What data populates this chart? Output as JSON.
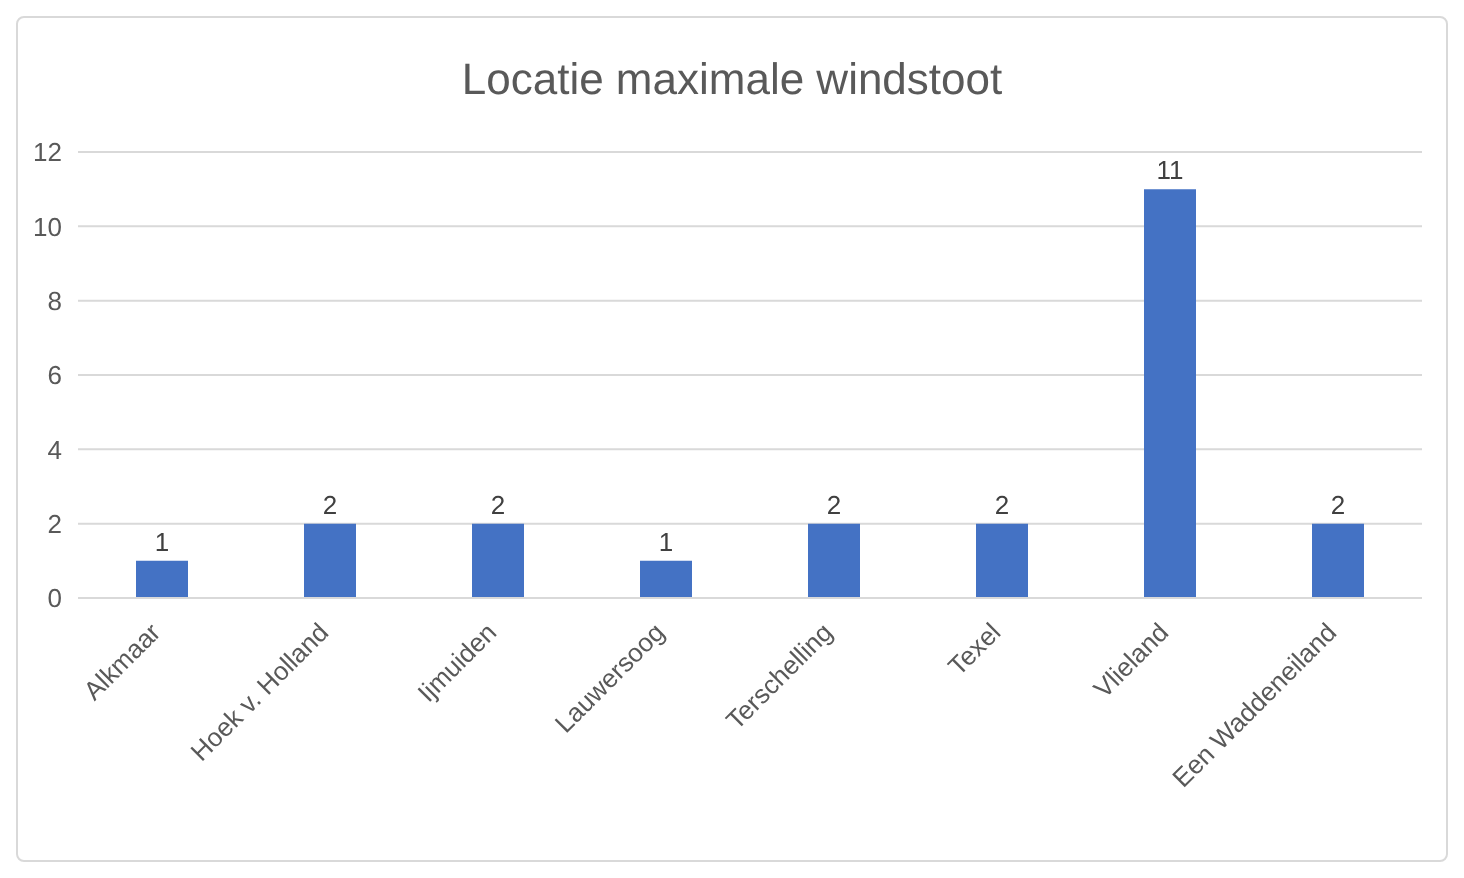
{
  "chart_data": {
    "type": "bar",
    "title": "Locatie maximale windstoot",
    "categories": [
      "Alkmaar",
      "Hoek v. Holland",
      "Ijmuiden",
      "Lauwersoog",
      "Terschelling",
      "Texel",
      "Vlieland",
      "Een Waddeneiland"
    ],
    "values": [
      1,
      2,
      2,
      1,
      2,
      2,
      11,
      2
    ],
    "color": "#4472c4",
    "ylim": [
      0,
      12
    ],
    "yticks": [
      0,
      2,
      4,
      6,
      8,
      10,
      12
    ],
    "grid": "y",
    "data_labels": true
  }
}
